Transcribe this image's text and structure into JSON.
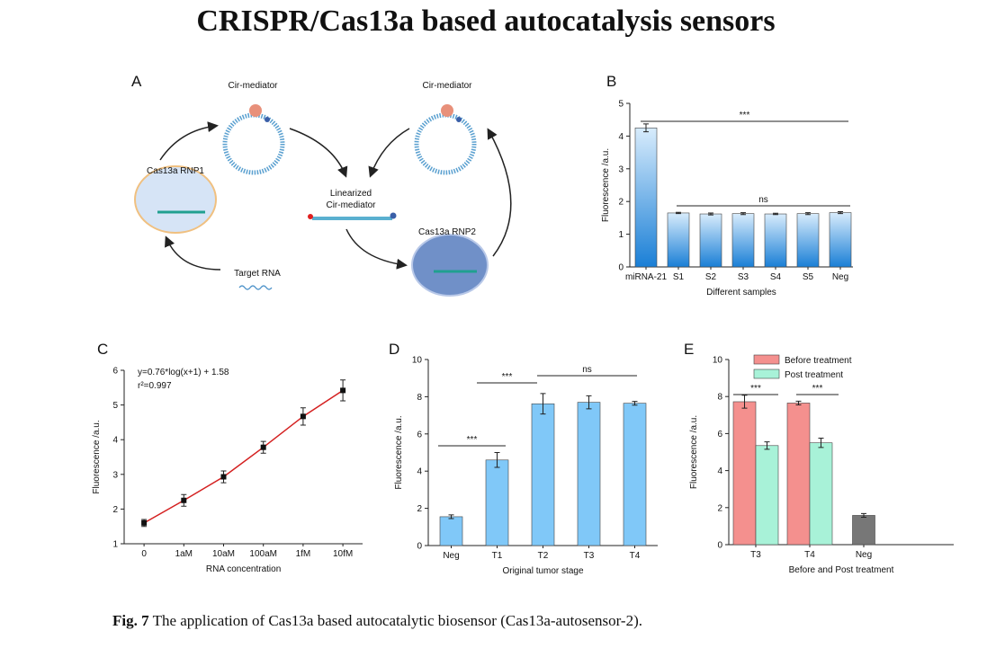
{
  "title": "CRISPR/Cas13a based autocatalysis sensors",
  "diagram": {
    "panel": "A",
    "labels": [
      "Cir-mediator",
      "Cir-mediator",
      "Cas13a RNP1",
      "Linearized",
      "Cir-mediator",
      "Cas13a RNP2",
      "Target RNA"
    ]
  },
  "chart_data": [
    {
      "type": "bar",
      "panel": "B",
      "ylabel": "Fluorescence /a.u.",
      "xlabel": "Different samples",
      "categories": [
        "miRNA-21",
        "S1",
        "S2",
        "S3",
        "S4",
        "S5",
        "Neg"
      ],
      "values": [
        4.25,
        1.65,
        1.62,
        1.63,
        1.62,
        1.63,
        1.66
      ],
      "errors": [
        0.12,
        0.02,
        0.03,
        0.03,
        0.02,
        0.03,
        0.03
      ],
      "color": "#1a7fd6",
      "fill_style": "gradient",
      "ylim": [
        0,
        5
      ],
      "yticks": [
        0,
        1,
        2,
        3,
        4,
        5
      ],
      "annotations": [
        {
          "text": "***",
          "color": "#e02020"
        },
        {
          "text": "ns",
          "color": "#111111"
        }
      ]
    },
    {
      "type": "line",
      "panel": "C",
      "ylabel": "Fluorescence /a.u.",
      "xlabel": "RNA concentration",
      "categories": [
        "0",
        "1aM",
        "10aM",
        "100aM",
        "1fM",
        "10fM"
      ],
      "values": [
        1.6,
        2.25,
        2.93,
        3.78,
        4.67,
        5.42
      ],
      "errors": [
        0.1,
        0.17,
        0.17,
        0.17,
        0.25,
        0.3
      ],
      "color": "#d42020",
      "marker_color": "#111111",
      "ylim": [
        1,
        6
      ],
      "yticks": [
        1,
        2,
        3,
        4,
        5,
        6
      ],
      "annotations": [
        {
          "text": "y=0.76*log(x+1) + 1.58",
          "color": "#111111"
        },
        {
          "text": "r²=0.997",
          "color": "#111111"
        }
      ]
    },
    {
      "type": "bar",
      "panel": "D",
      "ylabel": "Fluorescence /a.u.",
      "xlabel": "Original tumor stage",
      "categories": [
        "Neg",
        "T1",
        "T2",
        "T3",
        "T4"
      ],
      "values": [
        1.55,
        4.6,
        7.62,
        7.7,
        7.65
      ],
      "errors": [
        0.1,
        0.4,
        0.55,
        0.35,
        0.1
      ],
      "color": "#80c8f8",
      "fill_style": "solid",
      "ylim": [
        0,
        10
      ],
      "yticks": [
        0,
        2,
        4,
        6,
        8,
        10
      ],
      "annotations": [
        {
          "text": "***",
          "color": "#111111"
        },
        {
          "text": "***",
          "color": "#111111"
        },
        {
          "text": "ns",
          "color": "#111111"
        }
      ]
    },
    {
      "type": "bar",
      "panel": "E",
      "ylabel": "Fluorescence /a.u.",
      "xlabel": "Before and Post treatment",
      "categories": [
        "T3",
        "T4",
        "Neg"
      ],
      "series": [
        {
          "name": "Before treatment",
          "color": "#f4908e",
          "values": [
            7.72,
            7.65,
            null
          ],
          "errors": [
            0.35,
            0.1,
            null
          ]
        },
        {
          "name": "Post treatment",
          "color": "#a8f2d8",
          "values": [
            5.35,
            5.5,
            null
          ],
          "errors": [
            0.2,
            0.25,
            null
          ]
        },
        {
          "color": "#777777",
          "values": [
            null,
            null,
            1.58
          ],
          "errors": [
            null,
            null,
            0.1
          ]
        }
      ],
      "fill_style": "solid",
      "ylim": [
        0,
        10
      ],
      "yticks": [
        0,
        2,
        4,
        6,
        8,
        10
      ],
      "legend": "top-left",
      "annotations": [
        {
          "text": "***",
          "color": "#111111"
        },
        {
          "text": "***",
          "color": "#111111"
        }
      ]
    }
  ],
  "caption": {
    "label": "Fig. 7",
    "text": "The application of Cas13a based autocatalytic biosensor (Cas13a-autosensor-2)."
  }
}
